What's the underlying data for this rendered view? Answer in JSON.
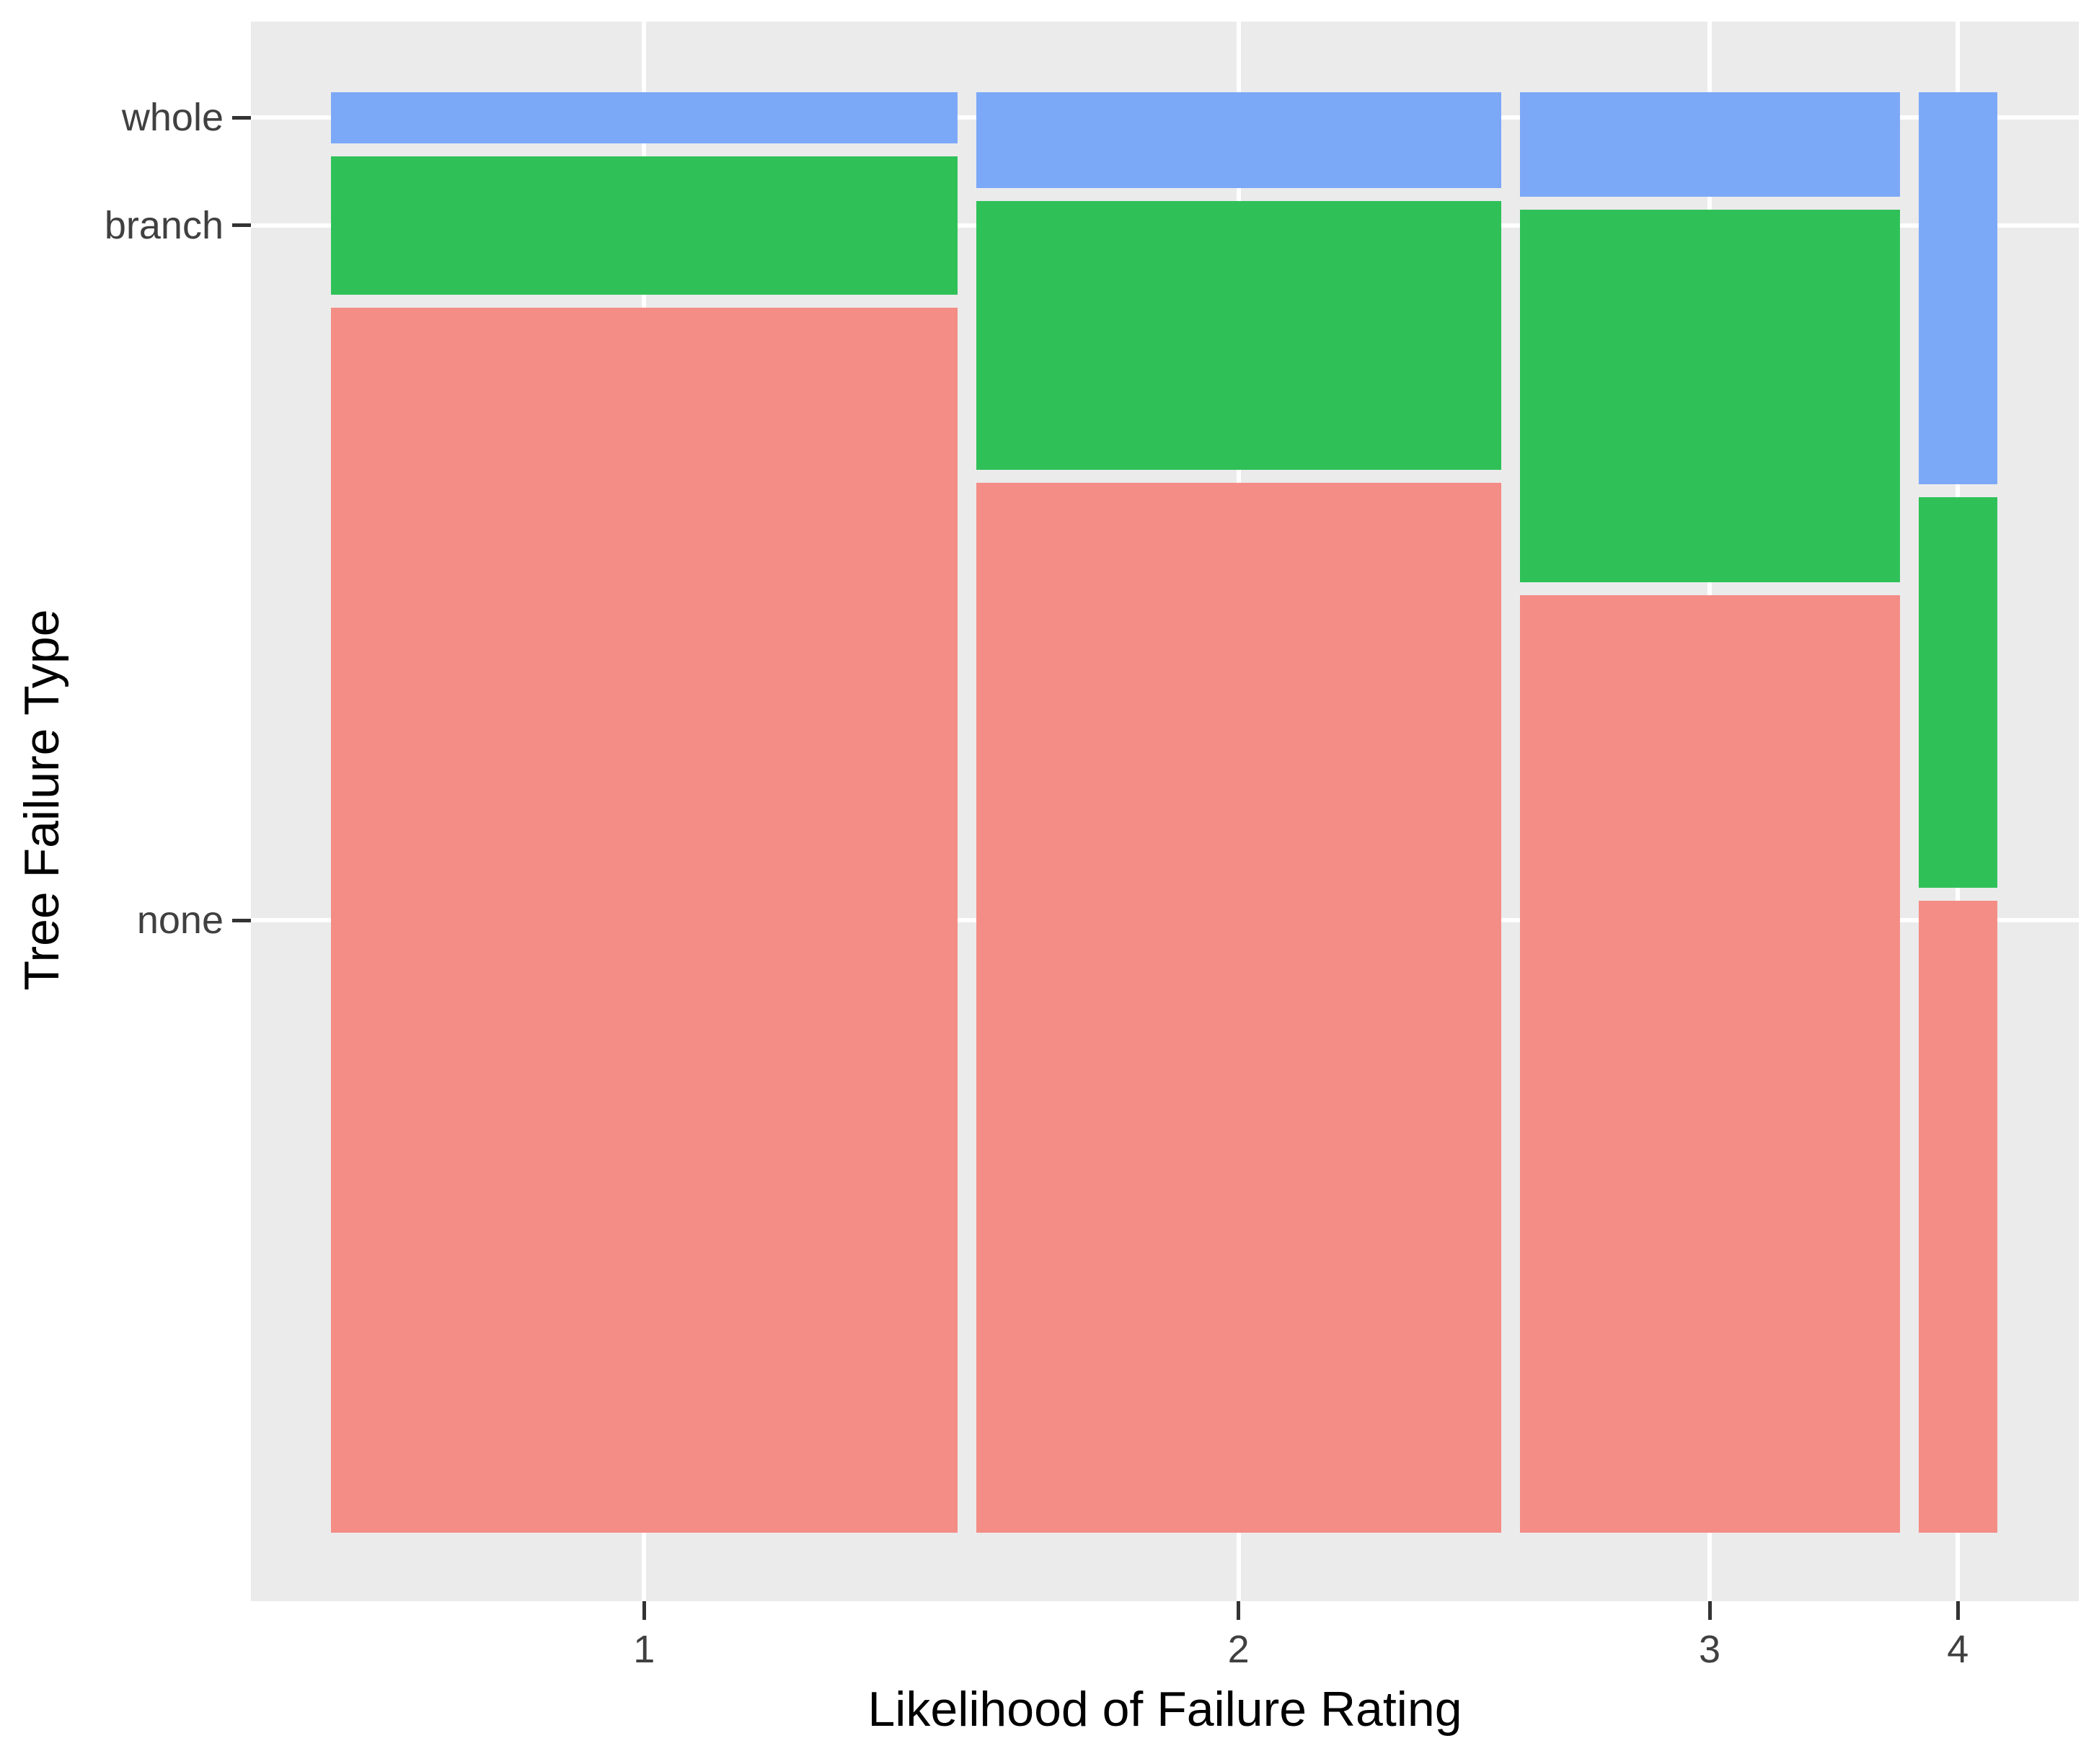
{
  "chart_data": {
    "type": "mosaic",
    "title": "",
    "xlabel": "Likelihood of Failure Rating",
    "ylabel": "Tree Failure Type",
    "x_categories": [
      "1",
      "2",
      "3",
      "4"
    ],
    "y_categories_bottom_to_top": [
      "none",
      "branch",
      "whole"
    ],
    "columns": [
      {
        "x": "1",
        "width_share": 0.389,
        "segments": {
          "whole": 0.036,
          "branch": 0.098,
          "none": 0.866
        }
      },
      {
        "x": "2",
        "width_share": 0.326,
        "segments": {
          "whole": 0.068,
          "branch": 0.19,
          "none": 0.742
        }
      },
      {
        "x": "3",
        "width_share": 0.236,
        "segments": {
          "whole": 0.074,
          "branch": 0.263,
          "none": 0.663
        }
      },
      {
        "x": "4",
        "width_share": 0.049,
        "segments": {
          "whole": 0.277,
          "branch": 0.276,
          "none": 0.447
        }
      }
    ],
    "colors": {
      "none": "#F48D86",
      "branch": "#2FC158",
      "whole": "#7CA8F8"
    },
    "panel_bg": "#EBEBEB",
    "gridline_color": "#FFFFFF",
    "axis_text_color": "#404040",
    "axis_title_color": "#000000",
    "legend_position": "none"
  }
}
